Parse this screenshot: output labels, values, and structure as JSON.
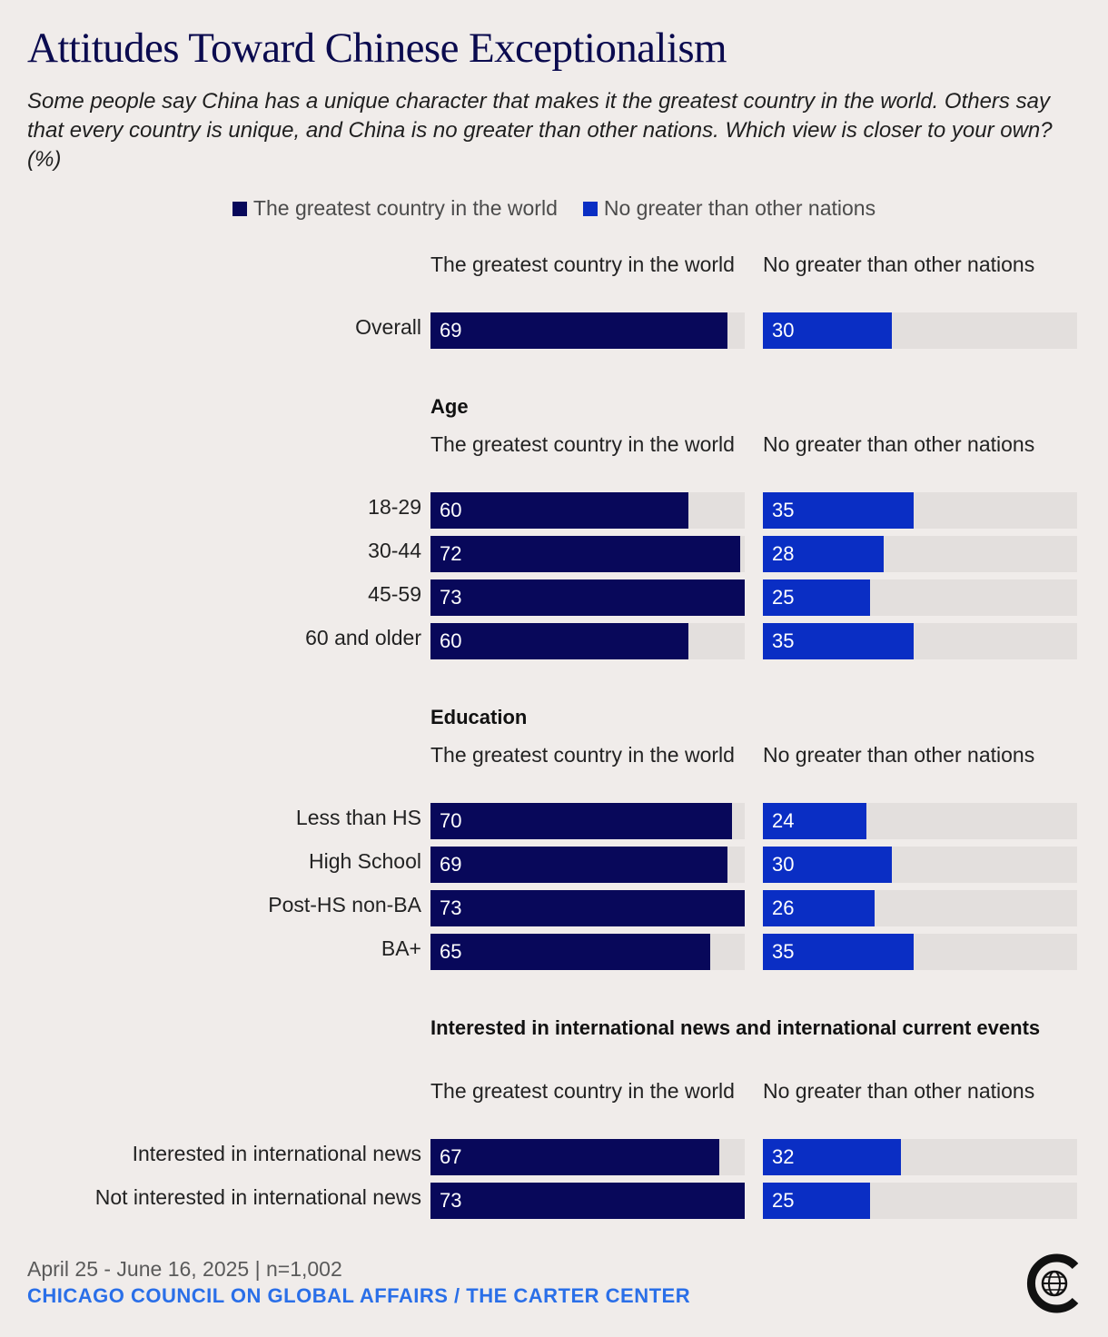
{
  "title": "Attitudes Toward Chinese Exceptionalism",
  "subtitle": "Some people say China has a unique character that makes it the greatest country in the world. Others say that every country is unique, and China is no greater than other nations. Which view is closer to your own? (%)",
  "colors": {
    "greatest": "#08085a",
    "no_greater": "#0a2ec4",
    "track": "#e3dfdd",
    "background": "#f0ecea",
    "source": "#2a6fe8"
  },
  "legend": {
    "greatest": "The greatest country in the world",
    "no_greater": "No greater than other nations"
  },
  "chart_data": {
    "type": "bar",
    "series_names": [
      "The greatest country in the world",
      "No greater than other nations"
    ],
    "xlim": [
      0,
      100
    ],
    "sections": [
      {
        "heading": "",
        "col_headers": [
          "The greatest country in the world",
          "No greater than other nations"
        ],
        "rows": [
          {
            "label": "Overall",
            "greatest": 69,
            "no_greater": 30
          }
        ]
      },
      {
        "heading": "Age",
        "col_headers": [
          "The greatest country in the world",
          "No greater than other nations"
        ],
        "rows": [
          {
            "label": "18-29",
            "greatest": 60,
            "no_greater": 35
          },
          {
            "label": "30-44",
            "greatest": 72,
            "no_greater": 28
          },
          {
            "label": "45-59",
            "greatest": 73,
            "no_greater": 25
          },
          {
            "label": "60 and older",
            "greatest": 60,
            "no_greater": 35
          }
        ]
      },
      {
        "heading": "Education",
        "col_headers": [
          "The greatest country in the world",
          "No greater than other nations"
        ],
        "rows": [
          {
            "label": "Less than HS",
            "greatest": 70,
            "no_greater": 24
          },
          {
            "label": "High School",
            "greatest": 69,
            "no_greater": 30
          },
          {
            "label": "Post-HS non-BA",
            "greatest": 73,
            "no_greater": 26
          },
          {
            "label": "BA+",
            "greatest": 65,
            "no_greater": 35
          }
        ]
      },
      {
        "heading": "Interested in international news and international current events",
        "col_headers": [
          "The greatest country in the world",
          "No greater than other nations"
        ],
        "rows": [
          {
            "label": "Interested in international news",
            "greatest": 67,
            "no_greater": 32
          },
          {
            "label": "Not interested in international news",
            "greatest": 73,
            "no_greater": 25
          }
        ]
      }
    ]
  },
  "footer": {
    "date": "April 25 - June 16, 2025 | n=1,002",
    "source": "CHICAGO COUNCIL ON GLOBAL AFFAIRS / THE CARTER CENTER"
  },
  "logo_icon": "globe-c-logo-icon"
}
